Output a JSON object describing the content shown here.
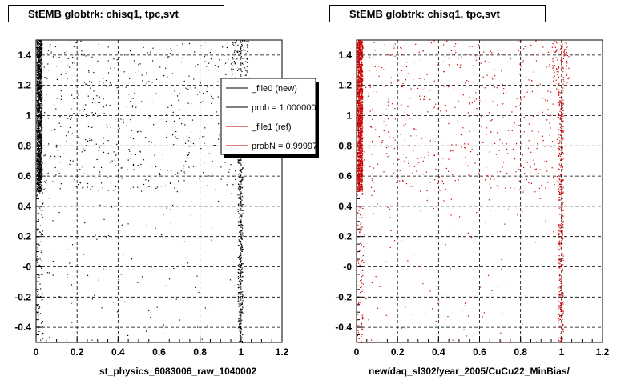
{
  "chart_data": [
    {
      "type": "scatter",
      "title": "StEMB globtrk: chisq1, tpc,svt",
      "xlabel": "st_physics_6083006_raw_1040002",
      "ylabel": "",
      "xlim": [
        0,
        1.2
      ],
      "ylim": [
        -0.5,
        1.5
      ],
      "xticks": [
        "0",
        "0.2",
        "0.4",
        "0.6",
        "0.8",
        "1",
        "1.2"
      ],
      "yticks": [
        "-0.4",
        "-0.2",
        "-0",
        "0.2",
        "0.4",
        "0.6",
        "0.8",
        "1",
        "1.2",
        "1.4"
      ],
      "grid": true,
      "marker_color": "#000000",
      "series": [
        {
          "name": "_file0 (new)",
          "color": "#000000",
          "structure": "dense band at x≈0–0.03 for y 0.5–1.5; sparse band near x≈1.0; scattered points elsewhere"
        }
      ],
      "legend": {
        "placement": "top-right",
        "entries": [
          {
            "label": "_file0 (new)",
            "color": "#000000"
          },
          {
            "label": "prob = 1.000000",
            "color": "#000000"
          },
          {
            "label": "_file1 (ref)",
            "color": "#cc0000"
          },
          {
            "label": "probN = 0.99997",
            "color": "#cc0000"
          }
        ]
      }
    },
    {
      "type": "scatter",
      "title": "StEMB globtrk: chisq1, tpc,svt",
      "xlabel": "new/daq_sl302/year_2005/CuCu22_MinBias/",
      "ylabel": "",
      "xlim": [
        0,
        1.2
      ],
      "ylim": [
        -0.5,
        1.5
      ],
      "xticks": [
        "0",
        "0.2",
        "0.4",
        "0.6",
        "0.8",
        "1",
        "1.2"
      ],
      "yticks": [
        "-0.4",
        "-0.2",
        "-0",
        "0.2",
        "0.4",
        "0.6",
        "0.8",
        "1",
        "1.2",
        "1.4"
      ],
      "grid": true,
      "marker_color": "#cc0000",
      "series": [
        {
          "name": "_file1 (ref)",
          "color": "#cc0000",
          "structure": "dense band at x≈0–0.03 for y 0.5–1.5; sparse band near x≈1.0; scattered points elsewhere"
        }
      ]
    }
  ]
}
